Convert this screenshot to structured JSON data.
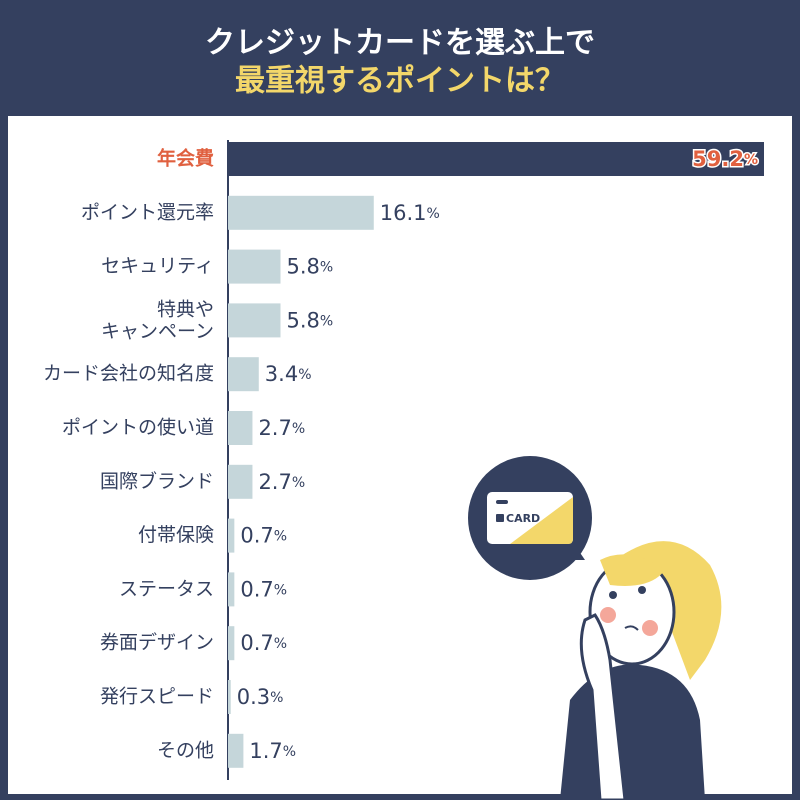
{
  "chart_data": {
    "type": "bar",
    "orientation": "horizontal",
    "title": [
      "クレジットカードを選ぶ上で",
      "最重視するポイントは？"
    ],
    "categories": [
      "年会費",
      "ポイント還元率",
      "セキュリティ",
      "特典や\nキャンペーン",
      "カード会社の知名度",
      "ポイントの使い道",
      "国際ブランド",
      "付帯保険",
      "ステータス",
      "券面デザイン",
      "発行スピード",
      "その他"
    ],
    "values": [
      59.2,
      16.1,
      5.8,
      5.8,
      3.4,
      2.7,
      2.7,
      0.7,
      0.7,
      0.7,
      0.3,
      1.7
    ],
    "value_labels": [
      "59.2%",
      "16.1%",
      "5.8%",
      "5.8%",
      "3.4%",
      "2.7%",
      "2.7%",
      "0.7%",
      "0.7%",
      "0.7%",
      "0.3%",
      "1.7%"
    ],
    "colors": [
      "#34405f",
      "#c5d6da",
      "#c5d6da",
      "#c5d6da",
      "#c5d6da",
      "#c5d6da",
      "#c5d6da",
      "#c5d6da",
      "#c5d6da",
      "#c5d6da",
      "#c5d6da",
      "#c5d6da"
    ],
    "label_colors": [
      "#e0603f",
      "#34405f",
      "#34405f",
      "#34405f",
      "#34405f",
      "#34405f",
      "#34405f",
      "#34405f",
      "#34405f",
      "#34405f",
      "#34405f",
      "#34405f"
    ],
    "annotations": [
      "CARD"
    ]
  }
}
